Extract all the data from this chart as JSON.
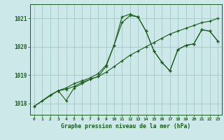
{
  "title": "Graphe pression niveau de la mer (hPa)",
  "xlabel_hours": [
    0,
    1,
    2,
    3,
    4,
    5,
    6,
    7,
    8,
    9,
    10,
    11,
    12,
    13,
    14,
    15,
    16,
    17,
    18,
    19,
    20,
    21,
    22,
    23
  ],
  "background_color": "#cce8e8",
  "grid_color": "#aacccc",
  "line_color": "#1a5c1a",
  "marker": "+",
  "ylim": [
    1017.6,
    1021.5
  ],
  "yticks": [
    1018,
    1019,
    1020,
    1021
  ],
  "series": [
    [
      1017.9,
      1018.1,
      1018.3,
      1018.45,
      1018.5,
      1018.6,
      1018.75,
      1018.85,
      1018.95,
      1019.1,
      1019.3,
      1019.5,
      1019.7,
      1019.85,
      1020.0,
      1020.15,
      1020.3,
      1020.45,
      1020.55,
      1020.65,
      1020.75,
      1020.85,
      1020.9,
      1021.0
    ],
    [
      1017.9,
      null,
      null,
      1018.45,
      1018.1,
      1018.55,
      1018.7,
      1018.85,
      1018.95,
      1019.3,
      1020.05,
      1021.05,
      1021.15,
      1021.05,
      1020.55,
      1019.85,
      1019.45,
      1019.15,
      1019.9,
      1020.05,
      1020.1,
      1020.6,
      1020.55,
      1020.2
    ],
    [
      null,
      null,
      null,
      1018.45,
      1018.55,
      1018.7,
      1018.8,
      1018.9,
      1019.05,
      1019.35,
      1020.05,
      1020.85,
      1021.1,
      1021.05,
      null,
      null,
      null,
      null,
      null,
      null,
      null,
      null,
      null,
      null
    ],
    [
      null,
      null,
      null,
      null,
      null,
      null,
      null,
      null,
      null,
      null,
      null,
      null,
      null,
      1021.05,
      1020.55,
      1019.85,
      1019.45,
      1019.15,
      1019.9,
      1020.05,
      1020.1,
      1020.6,
      1020.55,
      1020.2
    ]
  ]
}
